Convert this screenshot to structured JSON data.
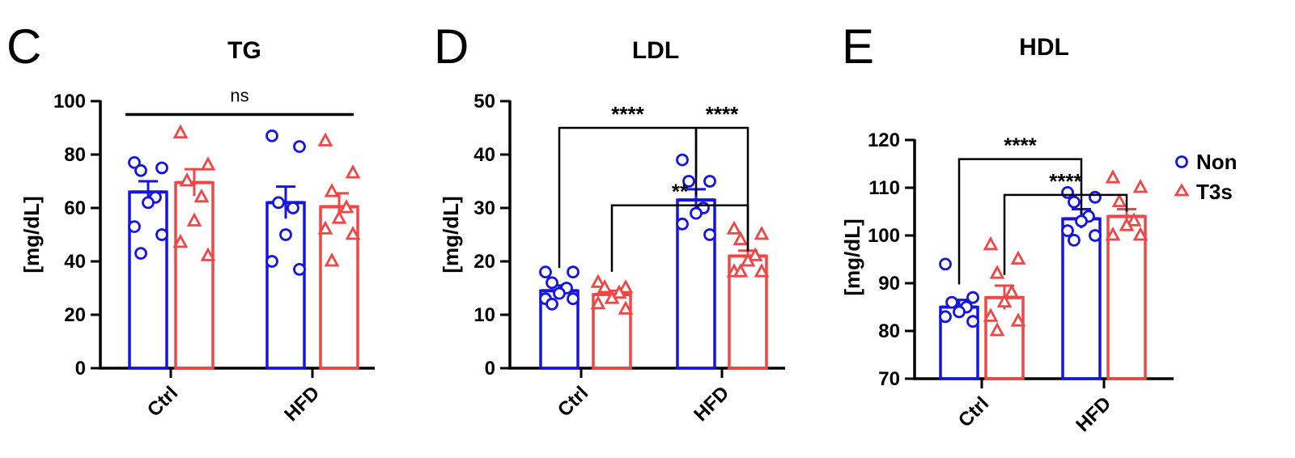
{
  "colors": {
    "non": "#1414e6",
    "t3s": "#f04646",
    "axis": "#000000"
  },
  "legend": [
    {
      "name": "Non",
      "marker": "circle",
      "color": "#1414e6"
    },
    {
      "name": "T3s",
      "marker": "triangle",
      "color": "#f04646"
    }
  ],
  "chart_data": [
    {
      "type": "bar",
      "panel_letter": "C",
      "title": "TG",
      "ylabel": "[mg/dL]",
      "ylim": [
        0,
        100
      ],
      "yticks": [
        0,
        20,
        40,
        60,
        80,
        100
      ],
      "categories": [
        "Ctrl",
        "HFD"
      ],
      "series": [
        {
          "name": "Non",
          "means": [
            66,
            62
          ],
          "sem": [
            4,
            6
          ],
          "points": [
            [
              77,
              75,
              74,
              64,
              62,
              53,
              50,
              43
            ],
            [
              87,
              83,
              62,
              60,
              50,
              40,
              37
            ]
          ]
        },
        {
          "name": "T3s",
          "means": [
            69.5,
            60.5
          ],
          "sem": [
            5,
            5
          ],
          "points": [
            [
              88,
              76,
              70,
              64,
              55,
              47,
              42
            ],
            [
              85,
              73,
              66,
              60,
              56,
              52,
              50,
              40
            ]
          ]
        }
      ],
      "significance": [
        {
          "label": "ns",
          "from": "Ctrl-Non",
          "to": "HFD-T3s",
          "y": 95,
          "style": "line"
        }
      ]
    },
    {
      "type": "bar",
      "panel_letter": "D",
      "title": "LDL",
      "ylabel": "[mg/dL]",
      "ylim": [
        0,
        50
      ],
      "yticks": [
        0,
        10,
        20,
        30,
        40,
        50
      ],
      "categories": [
        "Ctrl",
        "HFD"
      ],
      "series": [
        {
          "name": "Non",
          "means": [
            14.5,
            31.5
          ],
          "sem": [
            1,
            2
          ],
          "points": [
            [
              18,
              18,
              16,
              15,
              14,
              13,
              13,
              12
            ],
            [
              39,
              35,
              35,
              30,
              29,
              27,
              25
            ]
          ]
        },
        {
          "name": "T3s",
          "means": [
            13.8,
            21
          ],
          "sem": [
            0.7,
            1
          ],
          "points": [
            [
              16,
              15,
              15,
              14,
              13,
              12,
              11
            ],
            [
              26,
              25,
              24,
              21,
              20,
              18,
              18,
              18
            ]
          ]
        }
      ],
      "significance": [
        {
          "label": "****",
          "from": "Ctrl-Non",
          "to": "HFD-Non",
          "y": 45,
          "style": "bracket"
        },
        {
          "label": "****",
          "from": "HFD-Non",
          "to": "HFD-T3s",
          "y": 45,
          "style": "bracket"
        },
        {
          "label": "**",
          "from": "Ctrl-T3s",
          "to": "HFD-T3s",
          "y": 30.5,
          "style": "bracket"
        }
      ]
    },
    {
      "type": "bar",
      "panel_letter": "E",
      "title": "HDL",
      "ylabel": "[mg/dL]",
      "ylim": [
        70,
        120
      ],
      "yticks": [
        70,
        80,
        90,
        100,
        110,
        120
      ],
      "categories": [
        "Ctrl",
        "HFD"
      ],
      "series": [
        {
          "name": "Non",
          "means": [
            85,
            103.5
          ],
          "sem": [
            1.5,
            2
          ],
          "points": [
            [
              94,
              87,
              86,
              85,
              84,
              83,
              82
            ],
            [
              109,
              108,
              107,
              104,
              103,
              101,
              100,
              99
            ]
          ]
        },
        {
          "name": "T3s",
          "means": [
            87,
            104
          ],
          "sem": [
            2.5,
            1.5
          ],
          "points": [
            [
              98,
              95,
              92,
              88,
              86,
              83,
              82,
              80
            ],
            [
              112,
              110,
              107,
              103,
              102,
              100,
              100
            ]
          ]
        }
      ],
      "significance": [
        {
          "label": "****",
          "from": "Ctrl-Non",
          "to": "HFD-Non",
          "y": 116,
          "style": "bracket"
        },
        {
          "label": "****",
          "from": "Ctrl-T3s",
          "to": "HFD-T3s",
          "y": 108.5,
          "style": "bracket"
        }
      ]
    }
  ]
}
